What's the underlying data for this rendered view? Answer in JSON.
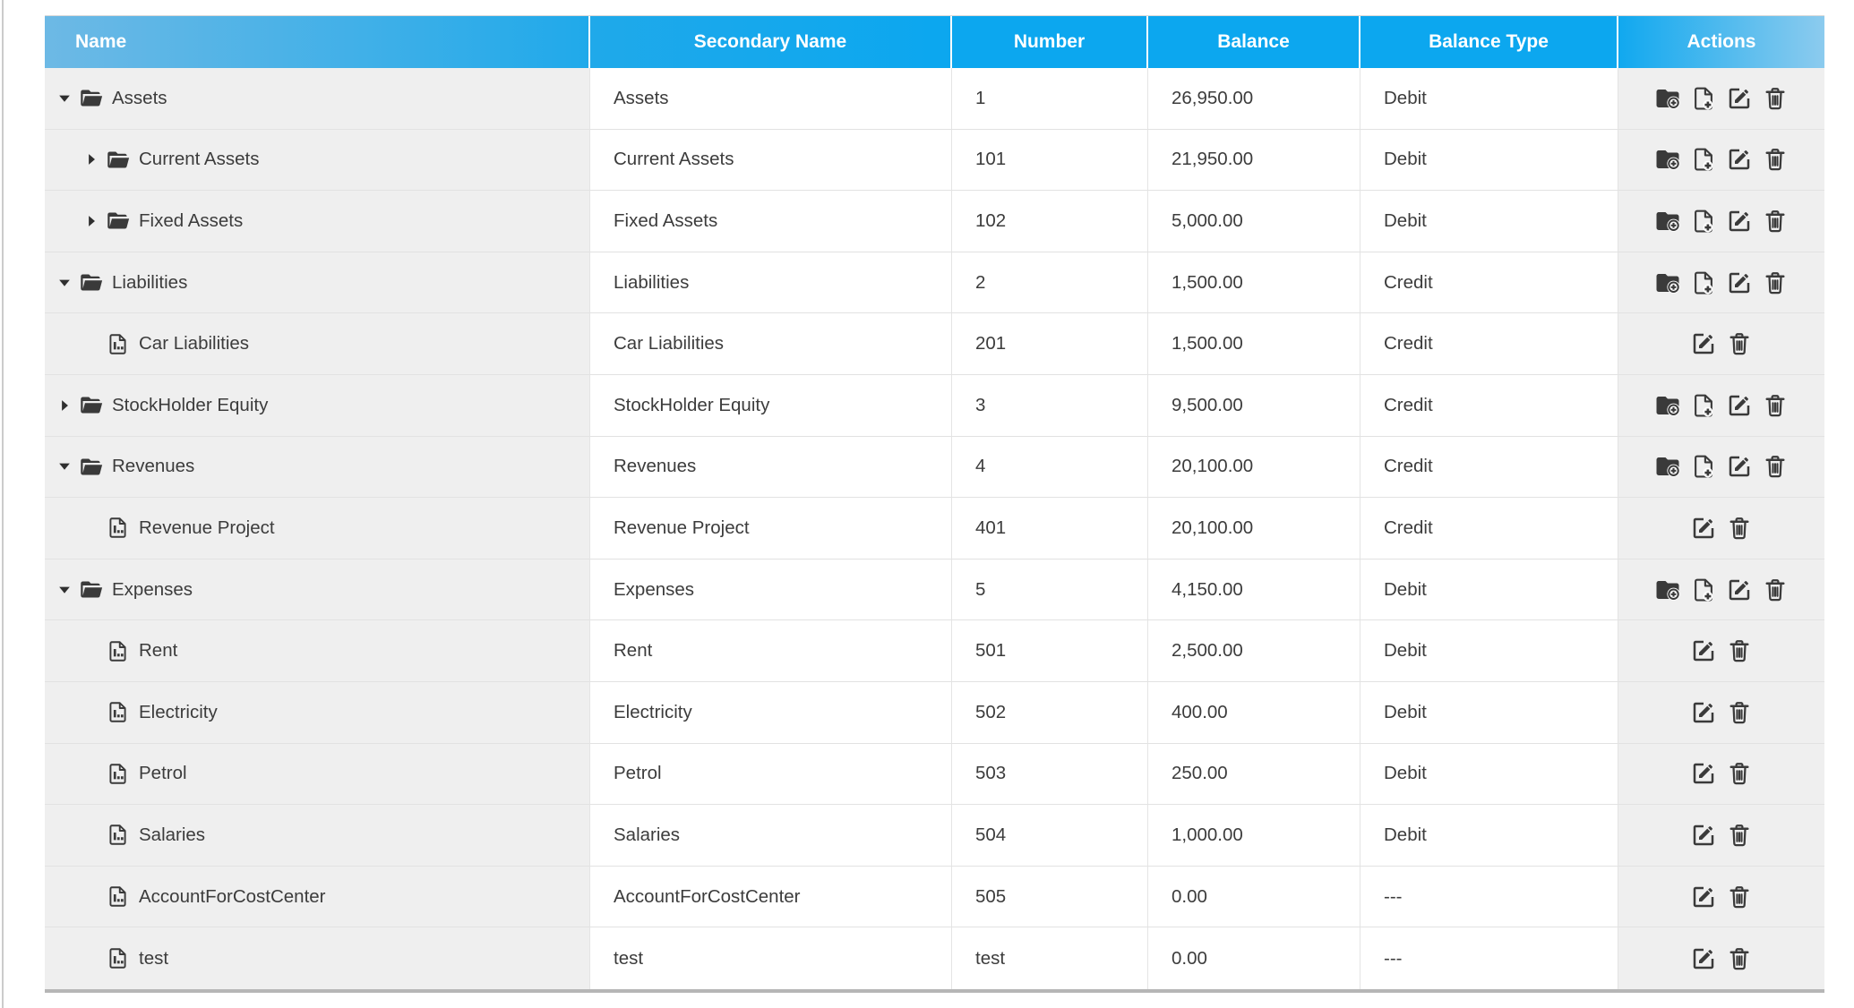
{
  "table": {
    "columns": [
      {
        "key": "name",
        "label": "Name"
      },
      {
        "key": "secondary_name",
        "label": "Secondary Name"
      },
      {
        "key": "number",
        "label": "Number"
      },
      {
        "key": "balance",
        "label": "Balance"
      },
      {
        "key": "balance_type",
        "label": "Balance Type"
      },
      {
        "key": "actions",
        "label": "Actions"
      }
    ],
    "rows": [
      {
        "name": "Assets",
        "secondary_name": "Assets",
        "number": "1",
        "balance": "26,950.00",
        "balance_type": "Debit",
        "level": 1,
        "node": "expanded",
        "actions": [
          "add_folder",
          "add_file",
          "edit",
          "delete"
        ]
      },
      {
        "name": "Current Assets",
        "secondary_name": "Current Assets",
        "number": "101",
        "balance": "21,950.00",
        "balance_type": "Debit",
        "level": 2,
        "node": "collapsed",
        "actions": [
          "add_folder",
          "add_file",
          "edit",
          "delete"
        ]
      },
      {
        "name": "Fixed Assets",
        "secondary_name": "Fixed Assets",
        "number": "102",
        "balance": "5,000.00",
        "balance_type": "Debit",
        "level": 2,
        "node": "collapsed",
        "actions": [
          "add_folder",
          "add_file",
          "edit",
          "delete"
        ]
      },
      {
        "name": "Liabilities",
        "secondary_name": "Liabilities",
        "number": "2",
        "balance": "1,500.00",
        "balance_type": "Credit",
        "level": 1,
        "node": "expanded",
        "actions": [
          "add_folder",
          "add_file",
          "edit",
          "delete"
        ]
      },
      {
        "name": "Car Liabilities",
        "secondary_name": "Car Liabilities",
        "number": "201",
        "balance": "1,500.00",
        "balance_type": "Credit",
        "level": 2,
        "node": "leaf",
        "actions": [
          "edit",
          "delete"
        ]
      },
      {
        "name": "StockHolder Equity",
        "secondary_name": "StockHolder Equity",
        "number": "3",
        "balance": "9,500.00",
        "balance_type": "Credit",
        "level": 1,
        "node": "collapsed",
        "actions": [
          "add_folder",
          "add_file",
          "edit",
          "delete"
        ]
      },
      {
        "name": "Revenues",
        "secondary_name": "Revenues",
        "number": "4",
        "balance": "20,100.00",
        "balance_type": "Credit",
        "level": 1,
        "node": "expanded",
        "actions": [
          "add_folder",
          "add_file",
          "edit",
          "delete"
        ]
      },
      {
        "name": "Revenue Project",
        "secondary_name": "Revenue Project",
        "number": "401",
        "balance": "20,100.00",
        "balance_type": "Credit",
        "level": 2,
        "node": "leaf",
        "actions": [
          "edit",
          "delete"
        ]
      },
      {
        "name": "Expenses",
        "secondary_name": "Expenses",
        "number": "5",
        "balance": "4,150.00",
        "balance_type": "Debit",
        "level": 1,
        "node": "expanded",
        "actions": [
          "add_folder",
          "add_file",
          "edit",
          "delete"
        ]
      },
      {
        "name": "Rent",
        "secondary_name": "Rent",
        "number": "501",
        "balance": "2,500.00",
        "balance_type": "Debit",
        "level": 2,
        "node": "leaf",
        "actions": [
          "edit",
          "delete"
        ]
      },
      {
        "name": "Electricity",
        "secondary_name": "Electricity",
        "number": "502",
        "balance": "400.00",
        "balance_type": "Debit",
        "level": 2,
        "node": "leaf",
        "actions": [
          "edit",
          "delete"
        ]
      },
      {
        "name": "Petrol",
        "secondary_name": "Petrol",
        "number": "503",
        "balance": "250.00",
        "balance_type": "Debit",
        "level": 2,
        "node": "leaf",
        "actions": [
          "edit",
          "delete"
        ]
      },
      {
        "name": "Salaries",
        "secondary_name": "Salaries",
        "number": "504",
        "balance": "1,000.00",
        "balance_type": "Debit",
        "level": 2,
        "node": "leaf",
        "actions": [
          "edit",
          "delete"
        ]
      },
      {
        "name": "AccountForCostCenter",
        "secondary_name": "AccountForCostCenter",
        "number": "505",
        "balance": "0.00",
        "balance_type": "---",
        "level": 2,
        "node": "leaf",
        "actions": [
          "edit",
          "delete"
        ]
      },
      {
        "name": "test",
        "secondary_name": "test",
        "number": "test",
        "balance": "0.00",
        "balance_type": "---",
        "level": 2,
        "node": "leaf",
        "actions": [
          "edit",
          "delete"
        ]
      }
    ],
    "icon_names": {
      "expanded": "caret-down-icon",
      "collapsed": "caret-right-icon",
      "folder": "open-folder-icon",
      "leaf": "chart-file-icon",
      "add_folder": "add-folder-icon",
      "add_file": "add-file-icon",
      "edit": "edit-icon",
      "delete": "trash-icon"
    },
    "colors": {
      "header_gradient_left": "#6db9e5",
      "header_gradient_main": "#0ca7ef",
      "header_gradient_right": "#8ccbee",
      "header_text": "#ffffff",
      "shaded_cell_bg": "#efefef",
      "cell_bg": "#ffffff",
      "grid_line": "#e2e2e2",
      "text": "#3c3c3c",
      "icon": "#3a3a3a"
    }
  }
}
